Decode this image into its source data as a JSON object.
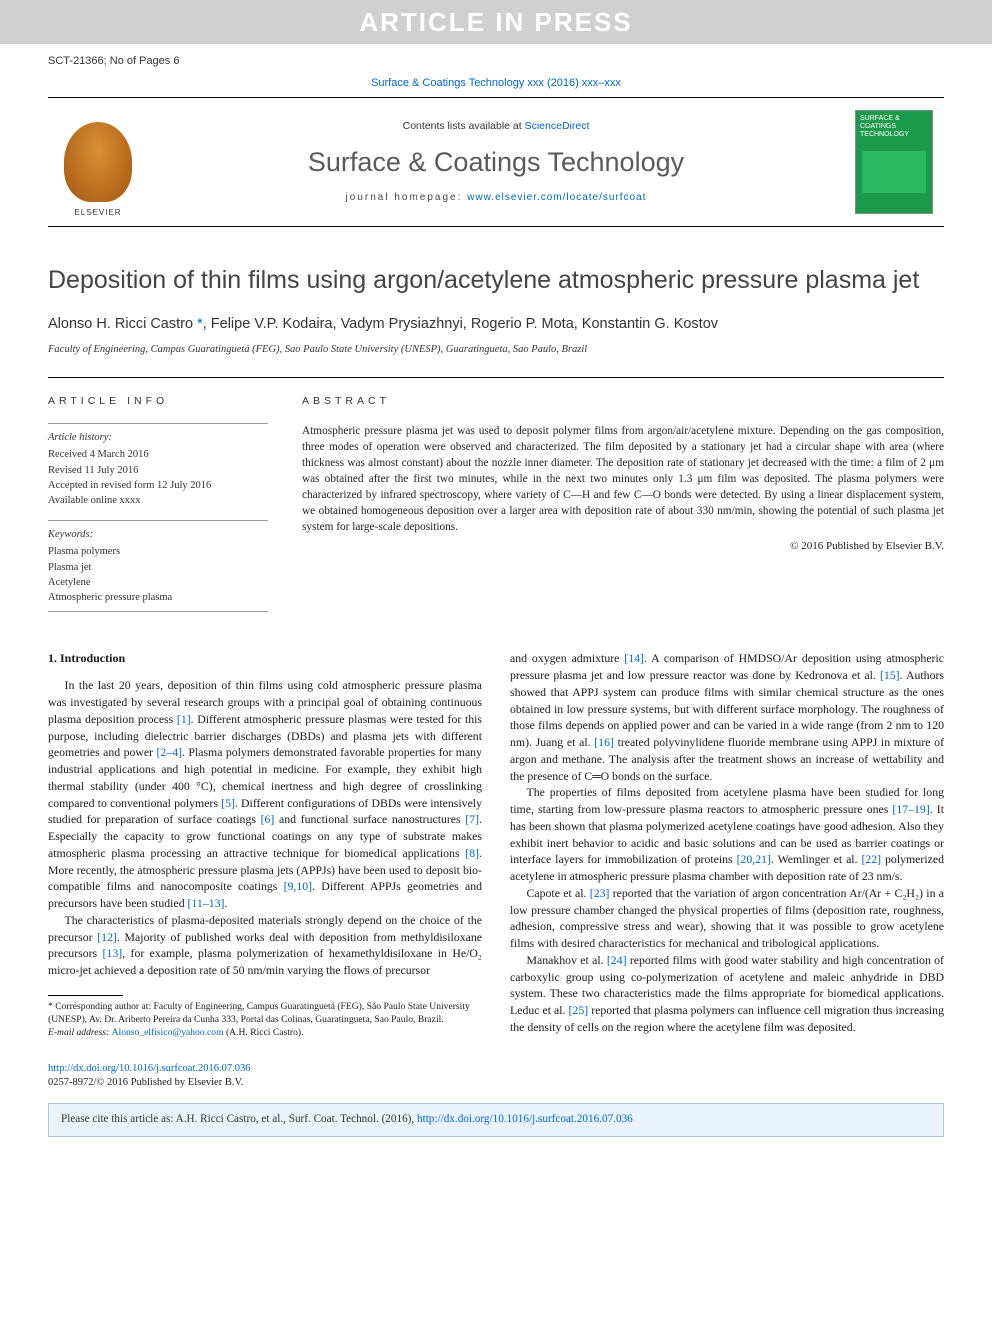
{
  "watermark": "ARTICLE IN PRESS",
  "topmeta": {
    "left": "SCT-21366; No of Pages 6",
    "right": ""
  },
  "header_link": "Surface & Coatings Technology xxx (2016) xxx–xxx",
  "journal_box": {
    "contents_prefix": "Contents lists available at ",
    "contents_link": "ScienceDirect",
    "journal_name": "Surface & Coatings Technology",
    "homepage_prefix": "journal homepage: ",
    "homepage_link": "www.elsevier.com/locate/surfcoat",
    "publisher_label": "ELSEVIER",
    "cover_text": "SURFACE & COATINGS TECHNOLOGY"
  },
  "title": "Deposition of thin films using argon/acetylene atmospheric pressure plasma jet",
  "authors_html": "Alonso H. Ricci Castro *, Felipe V.P. Kodaira, Vadym Prysiazhnyi, Rogerio P. Mota, Konstantin G. Kostov",
  "affiliation": "Faculty of Engineering, Campus Guaratinguetá (FEG), Sao Paulo State University (UNESP), Guaratingueta, Sao Paulo, Brazil",
  "info_head": "ARTICLE INFO",
  "abs_head": "ABSTRACT",
  "history": {
    "label": "Article history:",
    "l1": "Received 4 March 2016",
    "l2": "Revised 11 July 2016",
    "l3": "Accepted in revised form 12 July 2016",
    "l4": "Available online xxxx"
  },
  "keywords": {
    "label": "Keywords:",
    "k1": "Plasma polymers",
    "k2": "Plasma jet",
    "k3": "Acetylene",
    "k4": "Atmospheric pressure plasma"
  },
  "abstract": "Atmospheric pressure plasma jet was used to deposit polymer films from argon/air/acetylene mixture. Depending on the gas composition, three modes of operation were observed and characterized. The film deposited by a stationary jet had a circular shape with area (where thickness was almost constant) about the nozzle inner diameter. The deposition rate of stationary jet decreased with the time: a film of 2 μm was obtained after the first two minutes, while in the next two minutes only 1.3 μm film was deposited. The plasma polymers were characterized by infrared spectroscopy, where variety of C—H and few C—O bonds were detected. By using a linear displacement system, we obtained homogeneous deposition over a larger area with deposition rate of about 330 nm/min, showing the potential of such plasma jet system for large-scale depositions.",
  "copyright": "© 2016 Published by Elsevier B.V.",
  "section1_head": "1. Introduction",
  "para1": "In the last 20 years, deposition of thin films using cold atmospheric pressure plasma was investigated by several research groups with a principal goal of obtaining continuous plasma deposition process [1]. Different atmospheric pressure plasmas were tested for this purpose, including dielectric barrier discharges (DBDs) and plasma jets with different geometries and power [2–4]. Plasma polymers demonstrated favorable properties for many industrial applications and high potential in medicine. For example, they exhibit high thermal stability (under 400 °C), chemical inertness and high degree of crosslinking compared to conventional polymers [5]. Different configurations of DBDs were intensively studied for preparation of surface coatings [6] and functional surface nanostructures [7]. Especially the capacity to grow functional coatings on any type of substrate makes atmospheric plasma processing an attractive technique for biomedical applications [8]. More recently, the atmospheric pressure plasma jets (APPJs) have been used to deposit bio-compatible films and nanocomposite coatings [9,10]. Different APPJs geometries and precursors have been studied [11–13].",
  "para2": "The characteristics of plasma-deposited materials strongly depend on the choice of the precursor [12]. Majority of published works deal with deposition from methyldisiloxane precursors [13], for example, plasma polymerization of hexamethyldisiloxane in He/O₂ micro-jet achieved a deposition rate of 50 nm/min varying the flows of precursor",
  "para3": "and oxygen admixture [14]. A comparison of HMDSO/Ar deposition using atmospheric pressure plasma jet and low pressure reactor was done by Kedronova et al. [15]. Authors showed that APPJ system can produce films with similar chemical structure as the ones obtained in low pressure systems, but with different surface morphology. The roughness of those films depends on applied power and can be varied in a wide range (from 2 nm to 120 nm). Juang et al. [16] treated polyvinylidene fluoride membrane using APPJ in mixture of argon and methane. The analysis after the treatment shows an increase of wettability and the presence of C═O bonds on the surface.",
  "para4": "The properties of films deposited from acetylene plasma have been studied for long time, starting from low-pressure plasma reactors to atmospheric pressure ones [17–19]. It has been shown that plasma polymerized acetylene coatings have good adhesion. Also they exhibit inert behavior to acidic and basic solutions and can be used as barrier coatings or interface layers for immobilization of proteins [20,21]. Wemlinger et al. [22] polymerized acetylene in atmospheric pressure plasma chamber with deposition rate of 23 nm/s.",
  "para5": "Capote et al. [23] reported that the variation of argon concentration Ar/(Ar + C₂H₂) in a low pressure chamber changed the physical properties of films (deposition rate, roughness, adhesion, compressive stress and wear), showing that it was possible to grow acetylene films with desired characteristics for mechanical and tribological applications.",
  "para6": "Manakhov et al. [24] reported films with good water stability and high concentration of carboxylic group using co-polymerization of acetylene and maleic anhydride in DBD system. These two characteristics made the films appropriate for biomedical applications. Leduc et al. [25] reported that plasma polymers can influence cell migration thus increasing the density of cells on the region where the acetylene film was deposited.",
  "footnote": {
    "corr": "* Corresponding author at: Faculty of Engineering, Campus Guaratinguetá (FEG), São Paulo State University (UNESP), Av. Dr. Ariberto Pereira da Cunha 333, Portal das Colinas, Guaratingueta, Sao Paulo, Brazil.",
    "email_label": "E-mail address: ",
    "email": "Alonso_elfisico@yahoo.com",
    "email_suffix": " (A.H. Ricci Castro)."
  },
  "doi": {
    "link": "http://dx.doi.org/10.1016/j.surfcoat.2016.07.036",
    "issn": "0257-8972/© 2016 Published by Elsevier B.V."
  },
  "citebox": {
    "prefix": "Please cite this article as: A.H. Ricci Castro, et al., Surf. Coat. Technol. (2016), ",
    "link": "http://dx.doi.org/10.1016/j.surfcoat.2016.07.036"
  },
  "colors": {
    "link": "#0066cc",
    "watermark_bg": "#d0d0d0",
    "cover_bg": "#1a9a4a",
    "citebox_bg": "#eaf2fb",
    "citebox_border": "#a8c8e8"
  }
}
